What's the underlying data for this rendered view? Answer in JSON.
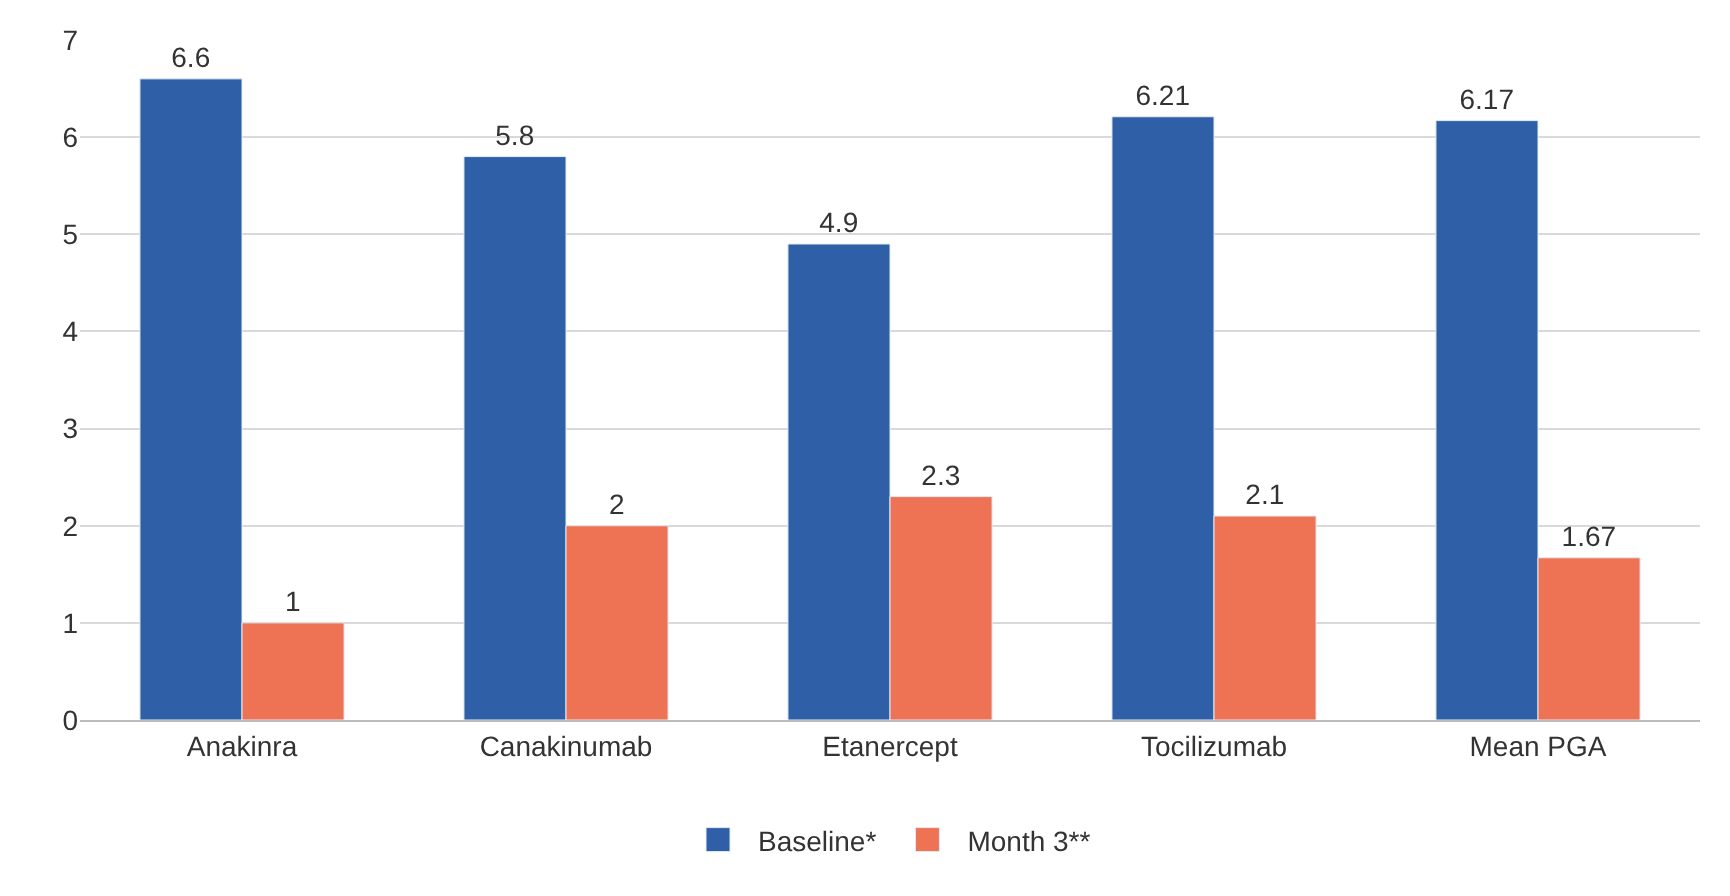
{
  "chart_data": {
    "type": "bar",
    "categories": [
      "Anakinra",
      "Canakinumab",
      "Etanercept",
      "Tocilizumab",
      "Mean PGA"
    ],
    "series": [
      {
        "name": "Baseline*",
        "color": "#2f5fa7",
        "values": [
          6.6,
          5.8,
          4.9,
          6.21,
          6.17
        ]
      },
      {
        "name": "Month 3**",
        "color": "#ee7254",
        "values": [
          1,
          2,
          2.3,
          2.1,
          1.67
        ]
      }
    ],
    "ylim": [
      0,
      7
    ],
    "yticks": [
      0,
      1,
      2,
      3,
      4,
      5,
      6,
      7
    ],
    "grid": "y",
    "legend": "bottom",
    "data_labels": true
  }
}
